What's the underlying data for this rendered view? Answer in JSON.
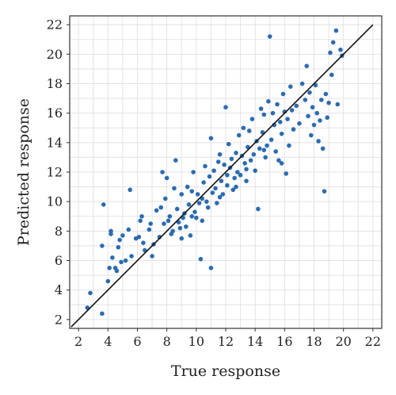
{
  "chart_data": {
    "type": "scatter",
    "xlabel": "True response",
    "ylabel": "Predicted response",
    "xlim": [
      2,
      22
    ],
    "ylim": [
      2,
      22
    ],
    "xticks": [
      2,
      4,
      6,
      8,
      10,
      12,
      14,
      16,
      18,
      20,
      22
    ],
    "yticks": [
      2,
      4,
      6,
      8,
      10,
      12,
      14,
      16,
      18,
      20,
      22
    ],
    "grid": true,
    "reference_line": {
      "x": [
        1.5,
        22
      ],
      "y": [
        1.5,
        22
      ],
      "color": "#111111"
    },
    "point_color": "#2b6cb0",
    "points": [
      [
        2.8,
        3.8
      ],
      [
        2.6,
        2.8
      ],
      [
        3.6,
        2.4
      ],
      [
        3.6,
        7.0
      ],
      [
        3.7,
        9.8
      ],
      [
        4.0,
        4.6
      ],
      [
        4.1,
        5.5
      ],
      [
        4.2,
        7.8
      ],
      [
        4.2,
        8.0
      ],
      [
        4.3,
        6.2
      ],
      [
        4.5,
        5.5
      ],
      [
        4.6,
        5.3
      ],
      [
        4.7,
        6.9
      ],
      [
        4.8,
        7.4
      ],
      [
        4.9,
        5.9
      ],
      [
        5.0,
        7.7
      ],
      [
        5.2,
        6.0
      ],
      [
        5.4,
        8.1
      ],
      [
        5.5,
        10.8
      ],
      [
        5.6,
        6.3
      ],
      [
        5.9,
        7.5
      ],
      [
        6.1,
        7.6
      ],
      [
        6.2,
        8.7
      ],
      [
        6.3,
        9.0
      ],
      [
        6.4,
        7.2
      ],
      [
        6.5,
        6.7
      ],
      [
        6.8,
        8.1
      ],
      [
        6.9,
        8.5
      ],
      [
        7.0,
        6.3
      ],
      [
        7.1,
        7.1
      ],
      [
        7.3,
        9.4
      ],
      [
        7.5,
        7.6
      ],
      [
        7.6,
        9.6
      ],
      [
        7.7,
        12.0
      ],
      [
        7.8,
        8.5
      ],
      [
        7.9,
        10.2
      ],
      [
        8.0,
        11.6
      ],
      [
        8.1,
        8.7
      ],
      [
        8.2,
        9.0
      ],
      [
        8.3,
        7.8
      ],
      [
        8.4,
        8.0
      ],
      [
        8.5,
        10.9
      ],
      [
        8.6,
        12.8
      ],
      [
        8.7,
        9.5
      ],
      [
        8.8,
        8.6
      ],
      [
        8.9,
        8.2
      ],
      [
        9.0,
        10.5
      ],
      [
        9.0,
        7.5
      ],
      [
        9.1,
        8.9
      ],
      [
        9.2,
        9.2
      ],
      [
        9.3,
        8.3
      ],
      [
        9.4,
        11.0
      ],
      [
        9.5,
        9.8
      ],
      [
        9.6,
        7.7
      ],
      [
        9.7,
        10.7
      ],
      [
        9.8,
        12.0
      ],
      [
        9.9,
        9.3
      ],
      [
        10.0,
        8.9
      ],
      [
        10.1,
        10.5
      ],
      [
        10.2,
        9.9
      ],
      [
        10.3,
        6.1
      ],
      [
        10.4,
        10.2
      ],
      [
        10.5,
        11.3
      ],
      [
        10.6,
        12.4
      ],
      [
        10.7,
        10.0
      ],
      [
        10.8,
        9.6
      ],
      [
        10.9,
        11.7
      ],
      [
        11.0,
        14.3
      ],
      [
        11.0,
        5.5
      ],
      [
        11.1,
        10.6
      ],
      [
        11.2,
        12.1
      ],
      [
        11.3,
        10.9
      ],
      [
        11.4,
        9.9
      ],
      [
        11.5,
        12.7
      ],
      [
        11.6,
        13.2
      ],
      [
        11.7,
        11.4
      ],
      [
        11.8,
        10.5
      ],
      [
        11.9,
        12.5
      ],
      [
        12.0,
        16.4
      ],
      [
        12.1,
        11.1
      ],
      [
        12.2,
        13.9
      ],
      [
        12.3,
        12.3
      ],
      [
        12.4,
        12.9
      ],
      [
        12.5,
        10.8
      ],
      [
        12.6,
        11.6
      ],
      [
        12.7,
        13.3
      ],
      [
        12.8,
        12.0
      ],
      [
        12.9,
        14.5
      ],
      [
        13.0,
        11.8
      ],
      [
        13.1,
        13.1
      ],
      [
        13.2,
        15.0
      ],
      [
        13.3,
        12.6
      ],
      [
        13.4,
        11.4
      ],
      [
        13.5,
        13.7
      ],
      [
        13.6,
        14.8
      ],
      [
        13.7,
        12.8
      ],
      [
        13.8,
        15.6
      ],
      [
        13.9,
        13.2
      ],
      [
        14.0,
        12.1
      ],
      [
        14.1,
        14.1
      ],
      [
        14.2,
        9.5
      ],
      [
        14.3,
        13.6
      ],
      [
        14.4,
        16.3
      ],
      [
        14.5,
        14.7
      ],
      [
        14.6,
        15.9
      ],
      [
        14.7,
        13.0
      ],
      [
        14.8,
        13.8
      ],
      [
        14.9,
        16.8
      ],
      [
        15.0,
        21.2
      ],
      [
        15.1,
        14.2
      ],
      [
        15.2,
        16.0
      ],
      [
        15.3,
        15.2
      ],
      [
        15.4,
        13.4
      ],
      [
        15.5,
        16.6
      ],
      [
        15.6,
        12.8
      ],
      [
        15.7,
        15.4
      ],
      [
        15.8,
        14.6
      ],
      [
        15.9,
        17.3
      ],
      [
        16.0,
        16.1
      ],
      [
        16.1,
        11.9
      ],
      [
        16.2,
        15.6
      ],
      [
        16.3,
        13.8
      ],
      [
        16.4,
        17.8
      ],
      [
        16.5,
        16.2
      ],
      [
        16.6,
        14.9
      ],
      [
        16.8,
        16.5
      ],
      [
        17.0,
        15.3
      ],
      [
        17.2,
        18.0
      ],
      [
        17.4,
        16.9
      ],
      [
        17.5,
        19.2
      ],
      [
        17.6,
        15.8
      ],
      [
        17.7,
        17.4
      ],
      [
        17.8,
        14.5
      ],
      [
        17.9,
        16.4
      ],
      [
        18.0,
        15.2
      ],
      [
        18.1,
        17.9
      ],
      [
        18.2,
        16.0
      ],
      [
        18.3,
        14.1
      ],
      [
        18.4,
        15.5
      ],
      [
        18.5,
        16.9
      ],
      [
        18.6,
        13.6
      ],
      [
        18.7,
        10.7
      ],
      [
        18.8,
        17.3
      ],
      [
        18.9,
        15.7
      ],
      [
        19.0,
        16.7
      ],
      [
        19.1,
        20.1
      ],
      [
        19.2,
        18.6
      ],
      [
        19.3,
        20.8
      ],
      [
        19.5,
        21.6
      ],
      [
        19.6,
        16.6
      ],
      [
        19.8,
        20.3
      ],
      [
        19.9,
        19.9
      ],
      [
        12.7,
        11.0
      ],
      [
        13.4,
        12.2
      ],
      [
        11.6,
        10.3
      ],
      [
        10.4,
        8.7
      ],
      [
        9.7,
        9.0
      ],
      [
        12.1,
        11.8
      ],
      [
        14.6,
        13.5
      ],
      [
        15.8,
        12.6
      ]
    ]
  }
}
